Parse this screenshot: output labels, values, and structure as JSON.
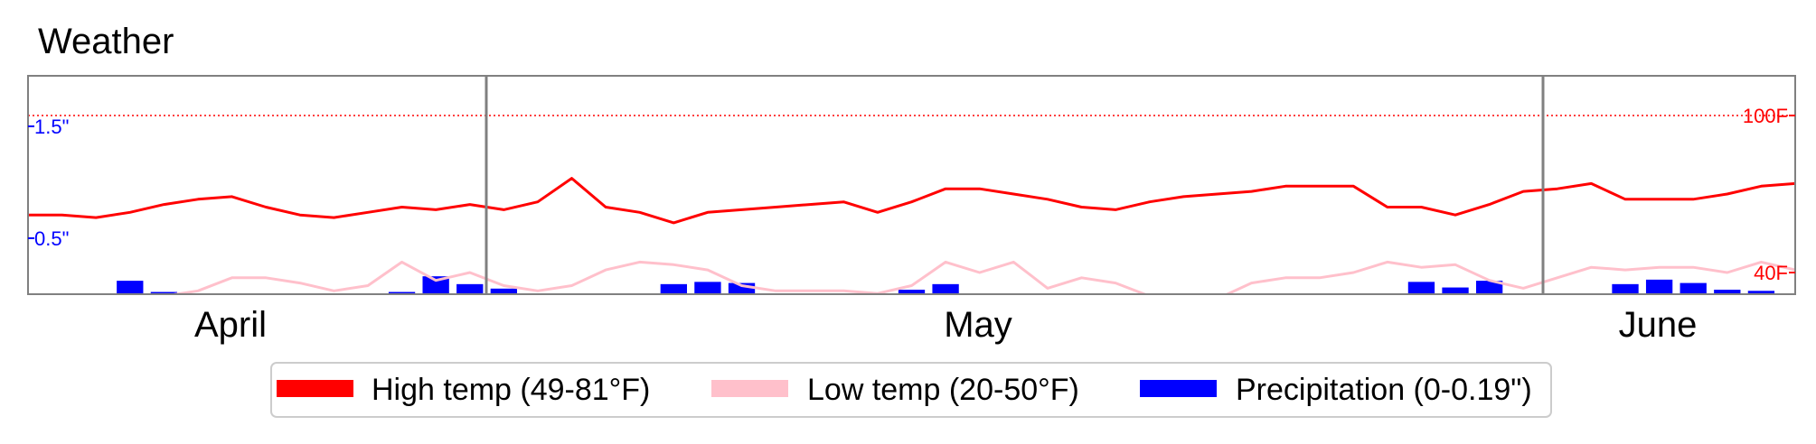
{
  "chart_data": {
    "type": "line",
    "title": "Weather",
    "months": [
      "April",
      "May",
      "June"
    ],
    "left_axis": {
      "ticks": [
        {
          "label": "0.5\"",
          "value": 0.5
        },
        {
          "label": "1.5\"",
          "value": 1.5
        }
      ],
      "color": "#0000ff"
    },
    "right_axis": {
      "ticks": [
        {
          "label": "40F",
          "value": 40
        },
        {
          "label": "100F",
          "value": 100
        }
      ],
      "color": "#ff0000",
      "reference_line": 100
    },
    "series": [
      {
        "name": "High temp (49-81°F)",
        "color": "#ff0000",
        "values": [
          62,
          62,
          61,
          63,
          66,
          68,
          69,
          65,
          62,
          61,
          63,
          65,
          64,
          66,
          64,
          67,
          76,
          65,
          63,
          59,
          63,
          64,
          65,
          66,
          67,
          63,
          67,
          72,
          72,
          70,
          68,
          65,
          64,
          67,
          69,
          70,
          71,
          73,
          73,
          73,
          65,
          65,
          62,
          66,
          71,
          72,
          74,
          68,
          68,
          68,
          70,
          73,
          74
        ]
      },
      {
        "name": "Low temp (20-50°F)",
        "color": "#ffc0cb",
        "values": [
          31,
          31,
          31,
          31,
          31,
          33,
          38,
          38,
          36,
          33,
          35,
          44,
          37,
          40,
          35,
          33,
          35,
          41,
          44,
          43,
          41,
          35,
          33,
          33,
          33,
          32,
          35,
          44,
          40,
          44,
          34,
          38,
          36,
          31,
          30,
          30,
          36,
          38,
          38,
          40,
          44,
          42,
          43,
          37,
          34,
          38,
          42,
          41,
          42,
          42,
          40,
          44,
          41
        ]
      },
      {
        "name": "Precipitation (0-0.19\")",
        "color": "#0000ff",
        "values": [
          0,
          0,
          0,
          0.12,
          0.02,
          0,
          0,
          0,
          0,
          0,
          0,
          0.02,
          0.16,
          0.09,
          0.05,
          0,
          0,
          0,
          0,
          0.09,
          0.11,
          0.1,
          0,
          0,
          0,
          0,
          0.04,
          0.09,
          0,
          0,
          0,
          0,
          0,
          0,
          0,
          0,
          0,
          0,
          0,
          0,
          0,
          0.11,
          0.06,
          0.12,
          0,
          0,
          0,
          0.09,
          0.13,
          0.1,
          0.04,
          0.03,
          0
        ]
      }
    ],
    "legend": {
      "position": "bottom",
      "items": [
        "High temp (49-81°F)",
        "Low temp (20-50°F)",
        "Precipitation (0-0.19\")"
      ]
    }
  }
}
